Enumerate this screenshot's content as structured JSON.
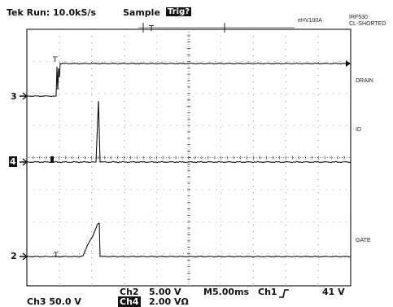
{
  "header": {
    "run_status": "Tek Run: 10.0kS/s",
    "acq_mode": "Sample",
    "trigger_state": "Trig?",
    "probe_label": "eHV100A",
    "device_line1": "IRF530",
    "device_line2": "CL-SHORTED"
  },
  "trace_labels": {
    "drain": "DRAIN",
    "id": "ID",
    "gate": "GATE"
  },
  "channel_markers": {
    "ch3": "3",
    "ch4": "4",
    "ch2": "2"
  },
  "bottom": {
    "ch3_scale": "Ch3    50.0 V",
    "ch2_name": "Ch2",
    "ch2_scale": "5.00 V",
    "ch4_name": "Ch4",
    "ch4_scale": "2.00 VΩ",
    "timebase": "M5.00ms",
    "trigger_source": "Ch1",
    "trigger_slope_icon": "rising-edge-icon",
    "trigger_level": "41 V"
  }
}
